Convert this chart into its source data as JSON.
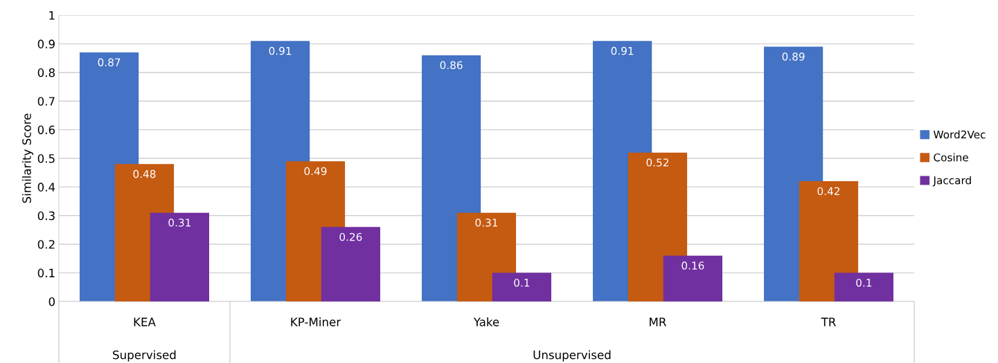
{
  "chart_data": {
    "type": "bar",
    "ylabel": "Similarity Score",
    "categories": [
      "KEA",
      "KP-Miner",
      "Yake",
      "MR",
      "TR"
    ],
    "series": [
      {
        "name": "Word2Vec",
        "color": "#4472c4",
        "values": [
          0.87,
          0.91,
          0.86,
          0.91,
          0.89
        ]
      },
      {
        "name": "Cosine",
        "color": "#c55a11",
        "values": [
          0.48,
          0.49,
          0.31,
          0.52,
          0.42
        ]
      },
      {
        "name": "Jaccard",
        "color": "#7030a0",
        "values": [
          0.31,
          0.26,
          0.1,
          0.16,
          0.1
        ]
      }
    ],
    "ylim": [
      0,
      1
    ],
    "yticks": [
      0,
      0.1,
      0.2,
      0.3,
      0.4,
      0.5,
      0.6,
      0.7,
      0.8,
      0.9,
      1
    ],
    "grid": "y",
    "legend": "right",
    "data_labels": true,
    "annotations": [
      "Supervised",
      "Unsupervised"
    ]
  }
}
